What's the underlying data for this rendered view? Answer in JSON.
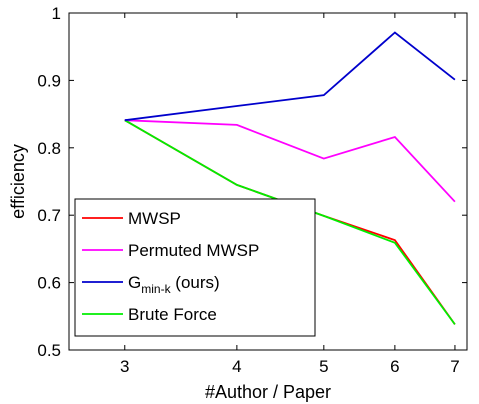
{
  "chart_data": {
    "type": "line",
    "xscale": "log",
    "x": [
      3,
      4,
      5,
      6,
      7
    ],
    "x_tick_labels": [
      "3",
      "4",
      "5",
      "6",
      "7"
    ],
    "xlabel": "#Author / Paper",
    "ylabel": "efficiency",
    "xlim": [
      2.6,
      7.22
    ],
    "ylim": [
      0.5,
      1.0
    ],
    "y_ticks": [
      0.5,
      0.6,
      0.7,
      0.8,
      0.9,
      1.0
    ],
    "y_tick_labels": [
      "0.5",
      "0.6",
      "0.7",
      "0.8",
      "0.9",
      "1"
    ],
    "grid": false,
    "legend_position": "bottom-left",
    "series": [
      {
        "name": "MWSP",
        "color": "#ff0000",
        "values": [
          0.841,
          0.745,
          0.699,
          0.663,
          0.538
        ]
      },
      {
        "name": "Permuted MWSP",
        "color": "#ff00ff",
        "values": [
          0.841,
          0.834,
          0.784,
          0.816,
          0.72
        ]
      },
      {
        "name": "G",
        "name_subscript": "min-k",
        "name_suffix": " (ours)",
        "color": "#0000cc",
        "values": [
          0.841,
          0.862,
          0.878,
          0.971,
          0.901
        ]
      },
      {
        "name": "Brute Force",
        "color": "#00ee00",
        "values": [
          0.841,
          0.745,
          0.699,
          0.659,
          0.538
        ]
      }
    ]
  }
}
